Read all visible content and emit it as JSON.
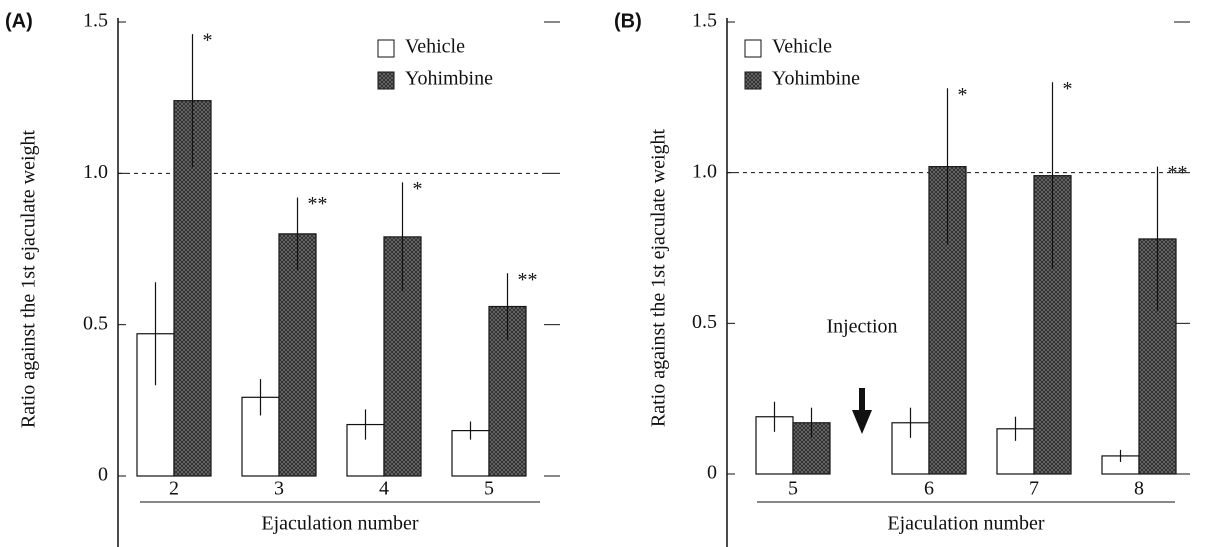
{
  "chart_data": [
    {
      "type": "bar",
      "panel_label": "(A)",
      "ylabel": "Ratio against the 1st ejaculate weight",
      "xlabel": "Ejaculation number",
      "categories": [
        "2",
        "3",
        "4",
        "5"
      ],
      "series": [
        {
          "name": "Vehicle",
          "color": "#ffffff",
          "values": [
            0.47,
            0.26,
            0.17,
            0.15
          ],
          "errors": [
            0.17,
            0.06,
            0.05,
            0.03
          ]
        },
        {
          "name": "Yohimbine",
          "color": "#6a6a6a",
          "values": [
            1.24,
            0.8,
            0.79,
            0.56
          ],
          "errors": [
            0.22,
            0.12,
            0.18,
            0.11
          ],
          "significance": [
            "*",
            "**",
            "*",
            "**"
          ]
        }
      ],
      "ylim": [
        0,
        1.5
      ],
      "yticks": [
        0,
        0.5,
        {
          "value": 1,
          "label": "1.0"
        },
        1.5
      ],
      "reference_line": 1
    },
    {
      "type": "bar",
      "panel_label": "(B)",
      "ylabel": "Ratio against the 1st ejaculate weight",
      "xlabel": "Ejaculation number",
      "categories": [
        "5",
        "6",
        "7",
        "8"
      ],
      "series": [
        {
          "name": "Vehicle",
          "color": "#ffffff",
          "values": [
            0.19,
            0.17,
            0.15,
            0.06
          ],
          "errors": [
            0.05,
            0.05,
            0.04,
            0.02
          ]
        },
        {
          "name": "Yohimbine",
          "color": "#6a6a6a",
          "values": [
            0.17,
            1.02,
            0.99,
            0.78
          ],
          "errors": [
            0.05,
            0.26,
            0.31,
            0.24
          ],
          "significance": [
            null,
            "*",
            "*",
            "**"
          ]
        }
      ],
      "ylim": [
        0,
        1.5
      ],
      "yticks": [
        0,
        0.5,
        {
          "value": 1,
          "label": "1.0"
        },
        1.5
      ],
      "reference_line": 1,
      "annotation": "Injection"
    }
  ]
}
